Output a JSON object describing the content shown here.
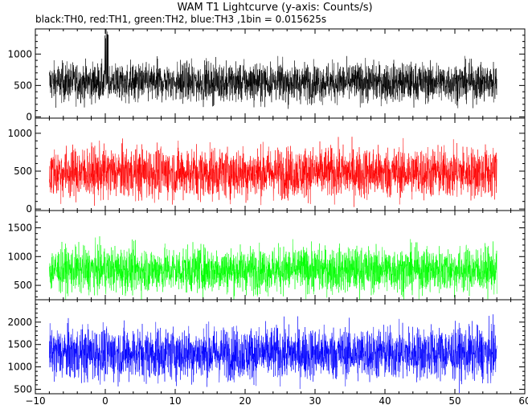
{
  "chart_data": {
    "type": "line",
    "title": "WAM T1 Lightcurve (y-axis: Counts/s)",
    "subtitle": "black:TH0, red:TH1, green:TH2, blue:TH3 ,1bin = 0.015625s",
    "xlabel": "",
    "ylabel": "",
    "xlim": [
      -10,
      60
    ],
    "xticks": [
      -10,
      0,
      10,
      20,
      30,
      40,
      50,
      60
    ],
    "x_range_data": [
      -8,
      56
    ],
    "bin_seconds": 0.015625,
    "panels": [
      {
        "series_label": "TH0",
        "color": "#000000",
        "ylim": [
          -20,
          1400
        ],
        "yticks": [
          0,
          500,
          1000
        ],
        "mean": 550,
        "typical_range": [
          300,
          850
        ],
        "spike": {
          "x": 0.2,
          "value": 1400
        }
      },
      {
        "series_label": "TH1",
        "color": "#ff0000",
        "ylim": [
          -20,
          1200
        ],
        "yticks": [
          0,
          500,
          1000
        ],
        "mean": 480,
        "typical_range": [
          200,
          800
        ]
      },
      {
        "series_label": "TH2",
        "color": "#00ff00",
        "ylim": [
          250,
          1800
        ],
        "yticks": [
          500,
          1000,
          1500
        ],
        "mean": 770,
        "typical_range": [
          500,
          1200
        ]
      },
      {
        "series_label": "TH3",
        "color": "#0000ff",
        "ylim": [
          400,
          2500
        ],
        "yticks": [
          500,
          1000,
          1500,
          2000
        ],
        "mean": 1300,
        "typical_range": [
          850,
          1900
        ]
      }
    ]
  }
}
